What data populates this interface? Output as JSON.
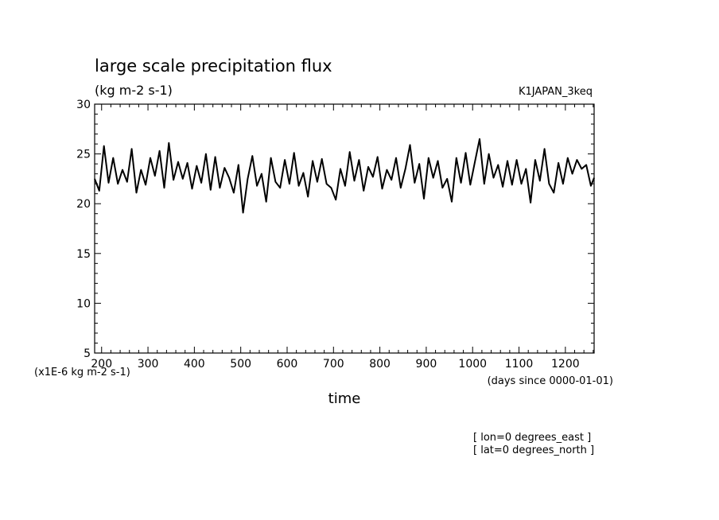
{
  "chart_data": {
    "type": "line",
    "title": "large scale precipitation flux",
    "subtitle": "(kg m-2 s-1)",
    "dataset": "K1JAPAN_3keq",
    "xlabel": "time",
    "x_unit_note": "(days since 0000-01-01)",
    "y_unit_note": "(x1E-6 kg m-2 s-1)",
    "xlim": [
      185,
      1262
    ],
    "ylim": [
      5,
      30
    ],
    "x_ticks": [
      200,
      300,
      400,
      500,
      600,
      700,
      800,
      900,
      1000,
      1100,
      1200
    ],
    "y_ticks": [
      5,
      10,
      15,
      20,
      25,
      30
    ],
    "footnotes": [
      "[ lon=0 degrees_east ]",
      "[ lat=0 degrees_north ]"
    ],
    "series": [
      {
        "x": [
          185,
          195,
          205,
          215,
          225,
          235,
          245,
          255,
          265,
          275,
          285,
          295,
          305,
          315,
          325,
          335,
          345,
          355,
          365,
          375,
          385,
          395,
          405,
          415,
          425,
          435,
          445,
          455,
          465,
          475,
          485,
          495,
          505,
          515,
          525,
          535,
          545,
          555,
          565,
          575,
          585,
          595,
          605,
          615,
          625,
          635,
          645,
          655,
          665,
          675,
          685,
          695,
          705,
          715,
          725,
          735,
          745,
          755,
          765,
          775,
          785,
          795,
          805,
          815,
          825,
          835,
          845,
          855,
          865,
          875,
          885,
          895,
          905,
          915,
          925,
          935,
          945,
          955,
          965,
          975,
          985,
          995,
          1005,
          1015,
          1025,
          1035,
          1045,
          1055,
          1065,
          1075,
          1085,
          1095,
          1105,
          1115,
          1125,
          1135,
          1145,
          1155,
          1165,
          1175,
          1185,
          1195,
          1205,
          1215,
          1225,
          1235,
          1245,
          1255,
          1262
        ],
        "y": [
          22.5,
          21.3,
          25.8,
          22.1,
          24.6,
          22.0,
          23.4,
          22.2,
          25.5,
          21.1,
          23.4,
          21.9,
          24.6,
          22.8,
          25.3,
          21.6,
          26.1,
          22.4,
          24.2,
          22.5,
          24.1,
          21.5,
          23.8,
          22.1,
          25.0,
          21.4,
          24.7,
          21.6,
          23.6,
          22.6,
          21.1,
          23.9,
          19.1,
          22.5,
          24.8,
          21.8,
          23.0,
          20.2,
          24.6,
          22.2,
          21.6,
          24.4,
          22.0,
          25.1,
          21.8,
          23.1,
          20.7,
          24.3,
          22.2,
          24.5,
          22.0,
          21.6,
          20.4,
          23.5,
          21.8,
          25.2,
          22.3,
          24.4,
          21.3,
          23.7,
          22.7,
          24.7,
          21.5,
          23.4,
          22.4,
          24.6,
          21.6,
          23.5,
          25.9,
          22.1,
          24.0,
          20.5,
          24.6,
          22.6,
          24.3,
          21.6,
          22.5,
          20.2,
          24.6,
          22.1,
          25.1,
          21.9,
          24.2,
          26.5,
          22.0,
          25.0,
          22.6,
          23.9,
          21.7,
          24.3,
          21.9,
          24.4,
          22.0,
          23.5,
          20.1,
          24.4,
          22.3,
          25.5,
          22.0,
          21.1,
          24.1,
          22.0,
          24.6,
          23.0,
          24.4,
          23.5,
          23.9,
          21.8,
          22.6
        ]
      }
    ]
  }
}
